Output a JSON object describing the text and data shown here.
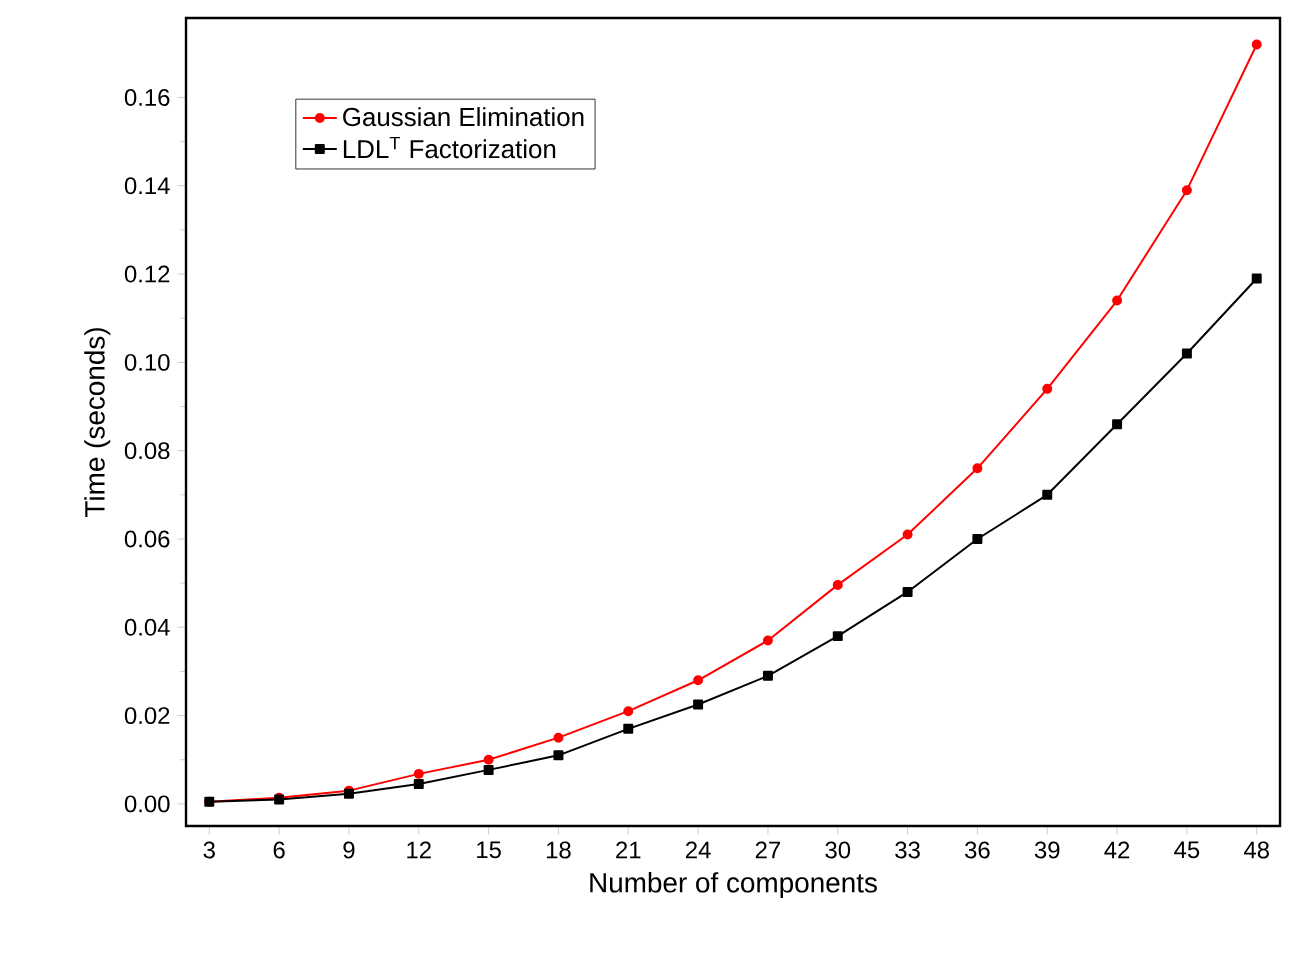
{
  "chart_data": {
    "type": "line",
    "xlabel": "Number of components",
    "ylabel": "Time (seconds)",
    "x": [
      3,
      6,
      9,
      12,
      15,
      18,
      21,
      24,
      27,
      30,
      33,
      36,
      39,
      42,
      45,
      48
    ],
    "series": [
      {
        "name": "Gaussian Elimination",
        "color": "#ff0000",
        "marker": "circle",
        "values": [
          0.0005,
          0.0014,
          0.003,
          0.0068,
          0.01,
          0.015,
          0.021,
          0.028,
          0.037,
          0.0496,
          0.061,
          0.076,
          0.094,
          0.114,
          0.139,
          0.172
        ]
      },
      {
        "name": "LDL$^{T}$ Factorization",
        "color": "#000000",
        "marker": "square",
        "values": [
          0.0005,
          0.001,
          0.0023,
          0.0045,
          0.0077,
          0.011,
          0.017,
          0.0225,
          0.029,
          0.038,
          0.048,
          0.06,
          0.07,
          0.086,
          0.102,
          0.119
        ]
      }
    ],
    "xlim": [
      2,
      49
    ],
    "ylim": [
      -0.005,
      0.178
    ],
    "xticks": [
      3,
      6,
      9,
      12,
      15,
      18,
      21,
      24,
      27,
      30,
      33,
      36,
      39,
      42,
      45,
      48
    ],
    "yticks": [
      {
        "value": 0.0,
        "label": "0.00"
      },
      {
        "value": 0.02,
        "label": "0.02"
      },
      {
        "value": 0.04,
        "label": "0.04"
      },
      {
        "value": 0.06,
        "label": "0.06"
      },
      {
        "value": 0.08,
        "label": "0.08"
      },
      {
        "value": 0.1,
        "label": "0.10"
      },
      {
        "value": 0.12,
        "label": "0.12"
      },
      {
        "value": 0.14,
        "label": "0.14"
      },
      {
        "value": 0.16,
        "label": "0.16"
      }
    ],
    "grid": false,
    "legend": "top left",
    "line_style": "solid"
  }
}
